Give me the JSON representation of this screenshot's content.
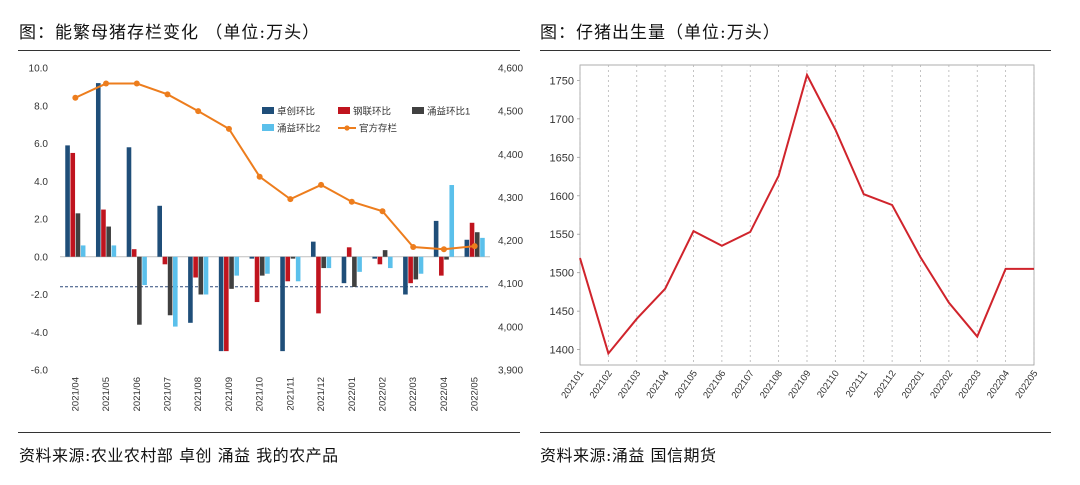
{
  "left_title": "图：能繁母猪存栏变化 （单位:万头）",
  "right_title": "图：仔猪出生量（单位:万头）",
  "left_source": "资料来源:农业农村部 卓创 涌益 我的农产品",
  "right_source": "资料来源:涌益 国信期货",
  "chart_data": [
    {
      "type": "bar",
      "title": "能繁母猪存栏变化",
      "categories": [
        "2021/04",
        "2021/05",
        "2021/06",
        "2021/07",
        "2021/08",
        "2021/09",
        "2021/10",
        "2021/11",
        "2021/12",
        "2022/01",
        "2022/02",
        "2022/03",
        "2022/04",
        "2022/05"
      ],
      "ylim": [
        -6.0,
        10.0
      ],
      "yticks": [
        "10.0",
        "8.0",
        "6.0",
        "4.0",
        "2.0",
        "0.0",
        "-2.0",
        "-4.0",
        "-6.0"
      ],
      "y2lim": [
        3900,
        4600
      ],
      "y2ticks": [
        "4,600",
        "4,500",
        "4,400",
        "4,300",
        "4,200",
        "4,100",
        "4,000",
        "3,900"
      ],
      "reference_line_y2": 4093,
      "series": [
        {
          "name": "卓创环比",
          "color": "#1f4e79",
          "values": [
            5.9,
            9.2,
            5.8,
            2.7,
            -3.5,
            -5.0,
            -0.1,
            -5.0,
            0.8,
            -1.4,
            -0.1,
            -2.0,
            1.9,
            0.9
          ]
        },
        {
          "name": "钢联环比",
          "color": "#c0141e",
          "values": [
            5.5,
            2.5,
            0.4,
            -0.4,
            -1.1,
            -5.0,
            -2.4,
            -1.3,
            -3.0,
            0.5,
            -0.4,
            -1.4,
            -1.0,
            1.8
          ]
        },
        {
          "name": "涌益环比1",
          "color": "#404040",
          "values": [
            2.3,
            1.6,
            -3.6,
            -3.1,
            -2.0,
            -1.7,
            -1.0,
            -0.1,
            -0.6,
            -1.6,
            0.35,
            -1.2,
            -0.15,
            1.3
          ]
        },
        {
          "name": "涌益环比2",
          "color": "#5bc0eb",
          "values": [
            0.6,
            0.6,
            -1.5,
            -3.7,
            -2.0,
            -1.0,
            -0.9,
            -1.3,
            -0.6,
            -0.8,
            -0.6,
            -0.9,
            3.8,
            1.0
          ]
        },
        {
          "name": "官方存栏",
          "type": "line",
          "axis": "right",
          "color": "#ed7d1d",
          "values": [
            4531,
            4564,
            4564,
            4539,
            4500,
            4459,
            4348,
            4296,
            4329,
            4290,
            4268,
            4185,
            4180,
            4187
          ]
        }
      ]
    },
    {
      "type": "line",
      "title": "仔猪出生量",
      "categories": [
        "202101",
        "202102",
        "202103",
        "202104",
        "202105",
        "202106",
        "202107",
        "202108",
        "202109",
        "202110",
        "202111",
        "202112",
        "202201",
        "202202",
        "202203",
        "202204",
        "202205"
      ],
      "ylim": [
        1380,
        1770
      ],
      "yticks": [
        "1750",
        "1700",
        "1650",
        "1600",
        "1550",
        "1500",
        "1450",
        "1400"
      ],
      "series": [
        {
          "name": "仔猪出生量",
          "color": "#d0242c",
          "values": [
            1519,
            1395,
            1440,
            1479,
            1554,
            1535,
            1553,
            1626,
            1757,
            1686,
            1602,
            1588,
            1520,
            1461,
            1417,
            1505,
            1505
          ]
        }
      ]
    }
  ]
}
